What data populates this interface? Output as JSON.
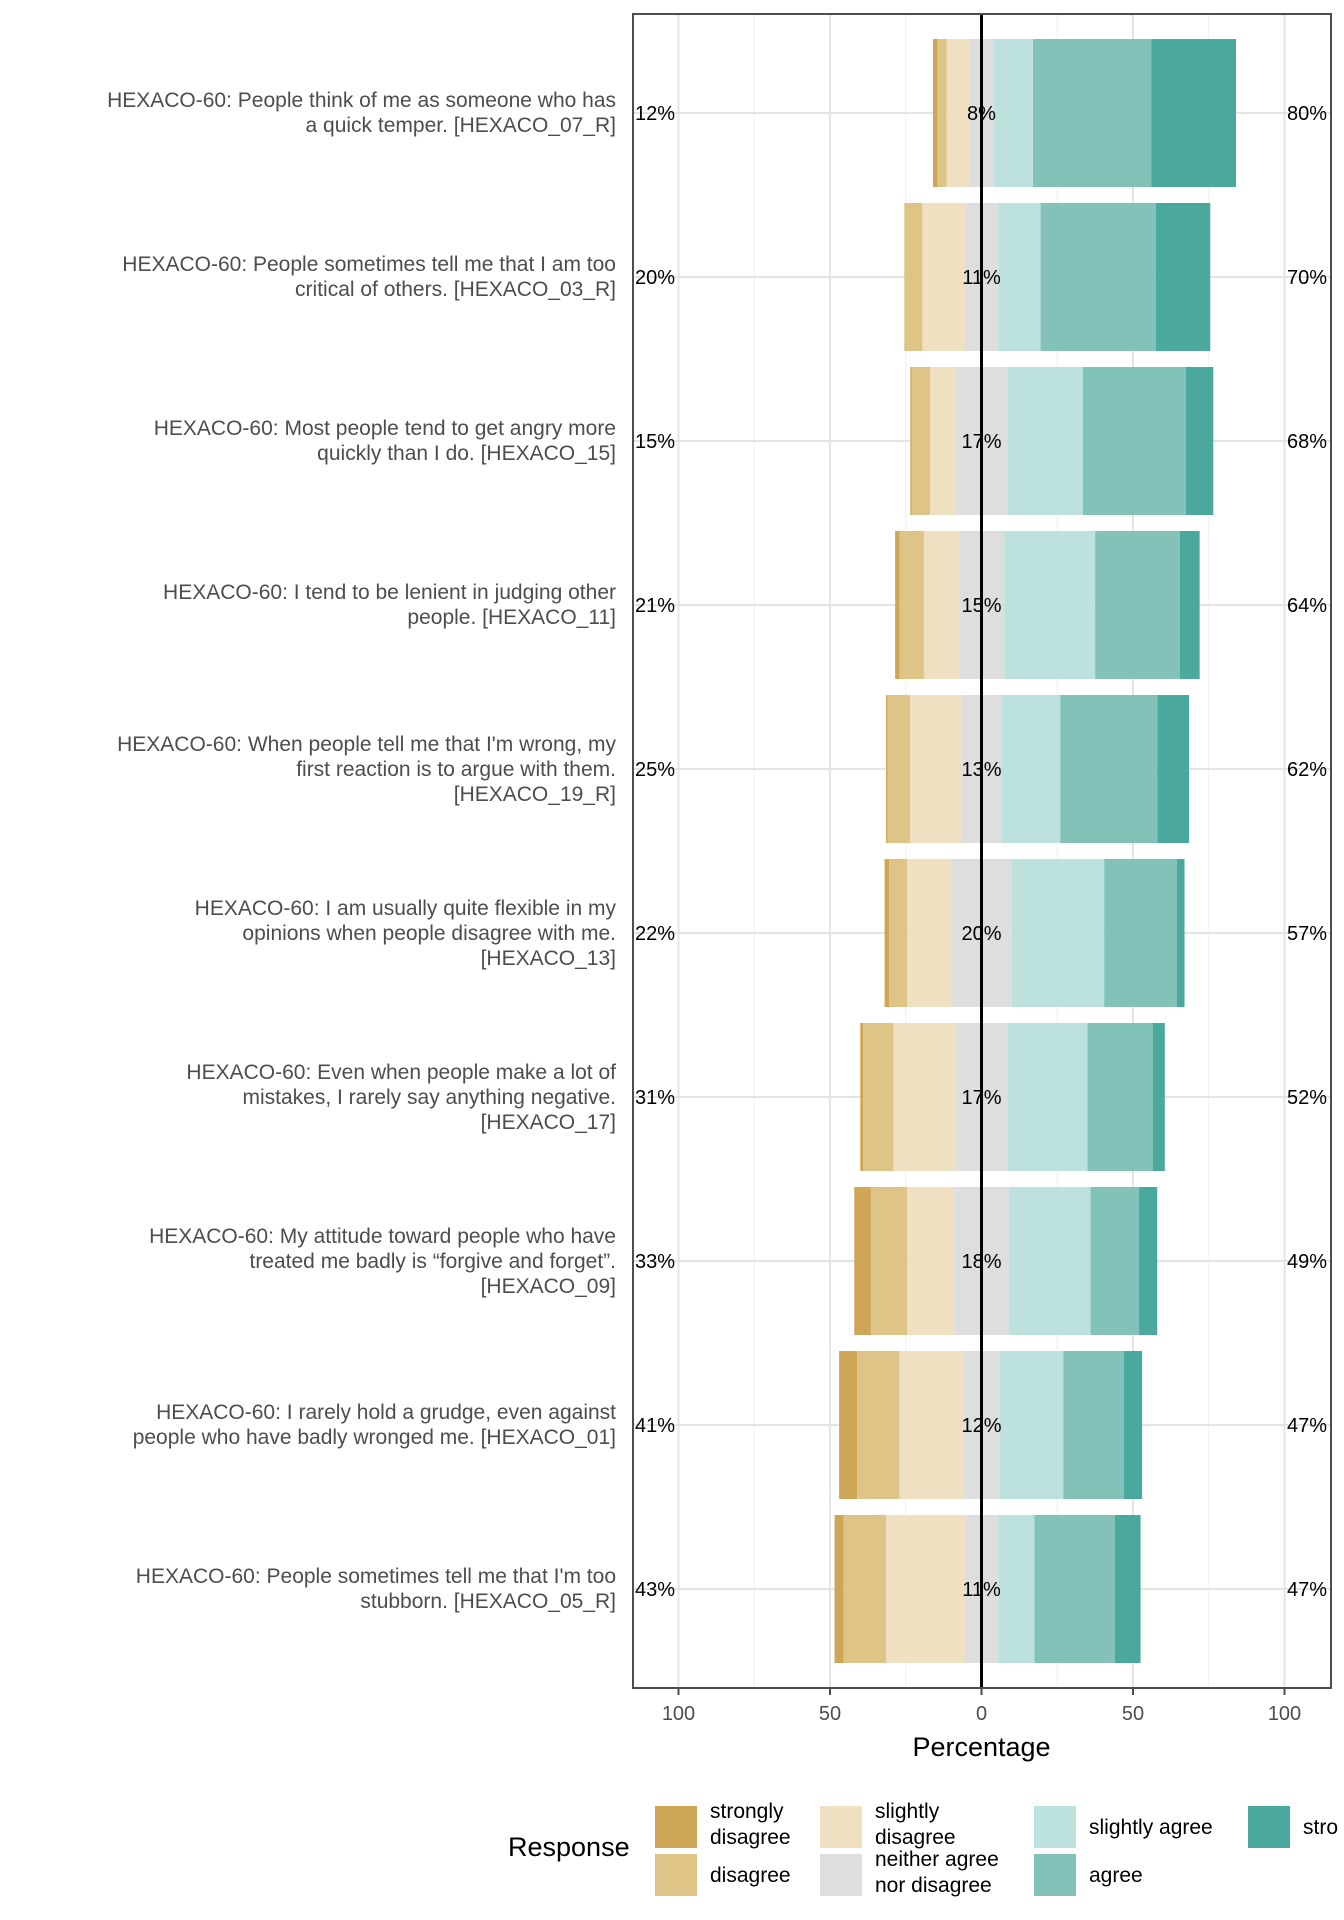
{
  "chart_data": {
    "type": "bar",
    "subtype": "diverging-stacked-likert",
    "xlabel": "Percentage",
    "xlim": [
      -100,
      100
    ],
    "x_ticks": [
      -100,
      -50,
      0,
      50,
      100
    ],
    "x_tick_labels": [
      "100",
      "50",
      "0",
      "50",
      "100"
    ],
    "legend_title": "Response",
    "legend_placement": "bottom",
    "response_levels": [
      {
        "name": "strongly disagree",
        "lines": [
          "strongly",
          "disagree"
        ],
        "color": "#CFA656"
      },
      {
        "name": "disagree",
        "lines": [
          "disagree"
        ],
        "color": "#DFC487"
      },
      {
        "name": "slightly disagree",
        "lines": [
          "slightly",
          "disagree"
        ],
        "color": "#EEE0C1"
      },
      {
        "name": "neither agree nor disagree",
        "lines": [
          "neither agree",
          "nor disagree"
        ],
        "color": "#DEDEDE"
      },
      {
        "name": "slightly agree",
        "lines": [
          "slightly agree"
        ],
        "color": "#BDE1DD"
      },
      {
        "name": "agree",
        "lines": [
          "agree"
        ],
        "color": "#82C2B8"
      },
      {
        "name": "strongly agree",
        "lines": [
          "stro"
        ],
        "color": "#4BA89C"
      }
    ],
    "items": [
      {
        "label_lines": [
          "HEXACO-60: People think of me as someone who has",
          "a quick temper. [HEXACO_07_R]"
        ],
        "values": [
          1.5,
          3,
          7.5,
          8,
          13,
          39,
          28
        ],
        "left_label": "12%",
        "center_label": "8%",
        "right_label": "80%"
      },
      {
        "label_lines": [
          "HEXACO-60: People sometimes tell me that I am too",
          "critical of others. [HEXACO_03_R]"
        ],
        "values": [
          0,
          6,
          14,
          11,
          14,
          38,
          18
        ],
        "left_label": "20%",
        "center_label": "11%",
        "right_label": "70%"
      },
      {
        "label_lines": [
          "HEXACO-60: Most people tend to get angry more",
          "quickly than I do. [HEXACO_15]"
        ],
        "values": [
          0.5,
          6,
          8.5,
          17,
          25,
          34,
          9
        ],
        "left_label": "15%",
        "center_label": "17%",
        "right_label": "68%"
      },
      {
        "label_lines": [
          "HEXACO-60: I tend to be lenient in judging other",
          "people. [HEXACO_11]"
        ],
        "values": [
          1.5,
          8,
          11.5,
          15,
          30,
          28,
          6.5
        ],
        "left_label": "21%",
        "center_label": "15%",
        "right_label": "64%"
      },
      {
        "label_lines": [
          "HEXACO-60: When people tell me that I'm wrong, my",
          "first reaction is to argue with them.",
          "[HEXACO_19_R]"
        ],
        "values": [
          0.5,
          7.5,
          17,
          13,
          19.5,
          32,
          10.5
        ],
        "left_label": "25%",
        "center_label": "13%",
        "right_label": "62%"
      },
      {
        "label_lines": [
          "HEXACO-60: I am usually quite flexible in my",
          "opinions when people disagree with me.",
          "[HEXACO_13]"
        ],
        "values": [
          1.5,
          6,
          14.5,
          20,
          30.5,
          24,
          2.5
        ],
        "left_label": "22%",
        "center_label": "20%",
        "right_label": "57%"
      },
      {
        "label_lines": [
          "HEXACO-60: Even when people make a lot of",
          "mistakes, I rarely say anything negative.",
          "[HEXACO_17]"
        ],
        "values": [
          1,
          10,
          20.5,
          17,
          26.5,
          21.5,
          4
        ],
        "left_label": "31%",
        "center_label": "17%",
        "right_label": "52%"
      },
      {
        "label_lines": [
          "HEXACO-60: My attitude toward people who have",
          "treated me badly is “forgive and forget”.",
          "[HEXACO_09]"
        ],
        "values": [
          5.5,
          12,
          15.5,
          18,
          27,
          16,
          6
        ],
        "left_label": "33%",
        "center_label": "18%",
        "right_label": "49%"
      },
      {
        "label_lines": [
          "HEXACO-60: I rarely hold a grudge, even against",
          "people who have badly wronged me. [HEXACO_01]"
        ],
        "values": [
          6,
          14,
          21,
          12,
          21,
          20,
          6
        ],
        "left_label": "41%",
        "center_label": "12%",
        "right_label": "47%"
      },
      {
        "label_lines": [
          "HEXACO-60: People sometimes tell me that I'm too",
          "stubborn. [HEXACO_05_R]"
        ],
        "values": [
          3,
          14,
          26,
          11,
          12,
          26.5,
          8.5
        ],
        "left_label": "43%",
        "center_label": "11%",
        "right_label": "47%"
      }
    ]
  }
}
